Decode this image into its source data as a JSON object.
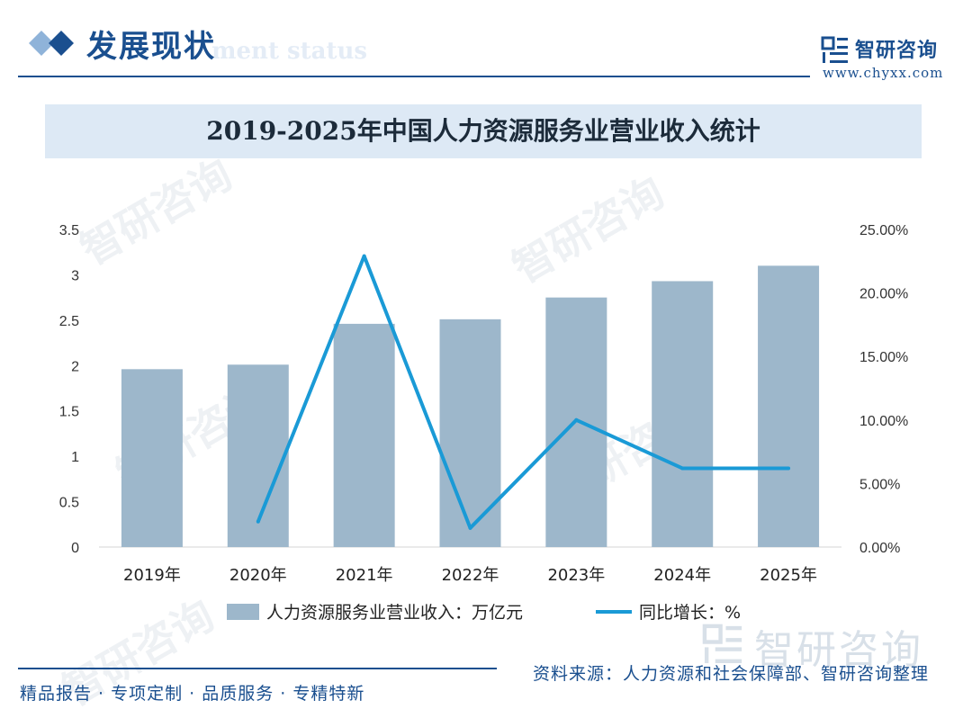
{
  "header": {
    "section_title": "发展现状",
    "section_subtitle": "ment status",
    "brand_name": "智研咨询",
    "brand_url": "www.chyxx.com"
  },
  "chart_data": {
    "type": "bar",
    "title": "2019-2025年中国人力资源服务业营业收入统计",
    "categories": [
      "2019年",
      "2020年",
      "2021年",
      "2022年",
      "2023年",
      "2024年",
      "2025年"
    ],
    "series": [
      {
        "name": "人力资源服务业营业收入：万亿元",
        "type": "bar",
        "axis": "left",
        "values": [
          1.96,
          2.01,
          2.46,
          2.51,
          2.75,
          2.93,
          3.1
        ]
      },
      {
        "name": "同比增长：%",
        "type": "line",
        "axis": "right",
        "values": [
          null,
          2.0,
          22.9,
          1.5,
          10.0,
          6.2,
          6.2
        ]
      }
    ],
    "y_left": {
      "ticks": [
        "0",
        "0.5",
        "1",
        "1.5",
        "2",
        "2.5",
        "3",
        "3.5"
      ],
      "ylim": [
        0,
        3.5
      ]
    },
    "y_right": {
      "ticks": [
        "0.00%",
        "5.00%",
        "10.00%",
        "15.00%",
        "20.00%",
        "25.00%"
      ],
      "ylim": [
        0,
        25
      ]
    },
    "legend_position": "bottom",
    "grid": false,
    "colors": {
      "bar": "#9db7cb",
      "line": "#1a9ad6"
    }
  },
  "footer": {
    "left": "精品报告 · 专项定制 · 品质服务 · 专精特新",
    "source": "资料来源：人力资源和社会保障部、智研咨询整理",
    "watermark": "智研咨询"
  }
}
